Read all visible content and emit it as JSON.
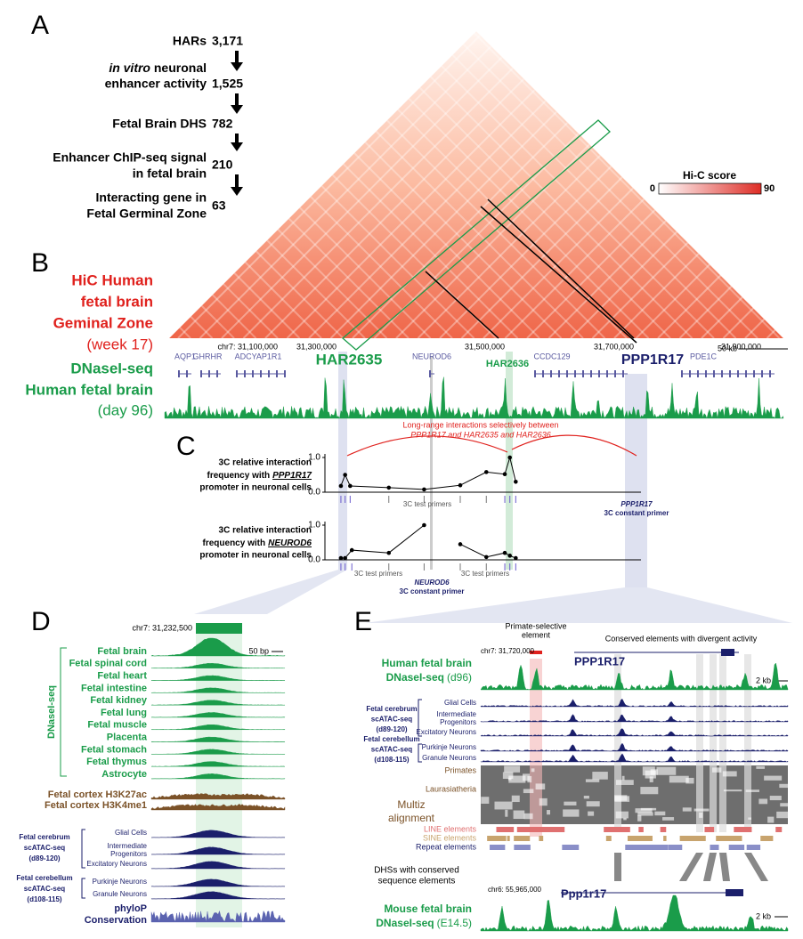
{
  "panel_a": {
    "label": "A",
    "steps": [
      {
        "lines": [
          "HARs"
        ],
        "count": "3,171"
      },
      {
        "italic": "in vitro",
        "lines": [
          " neuronal",
          "enhancer activity"
        ],
        "count": "1,525"
      },
      {
        "lines": [
          "Fetal Brain DHS"
        ],
        "count": "782"
      },
      {
        "lines": [
          "Enhancer ChIP-seq signal",
          "in fetal brain"
        ],
        "count": "210"
      },
      {
        "lines": [
          "Interacting gene in",
          "Fetal Germinal Zone"
        ],
        "count": "63"
      }
    ]
  },
  "panel_b": {
    "label": "B",
    "hic_title": [
      "HiC Human",
      "fetal brain",
      "Geminal Zone",
      "(week 17)"
    ],
    "hic_legend": {
      "title": "Hi-C score",
      "min": 0,
      "max": 90
    },
    "coordinates": [
      "chr7: 31,100,000",
      "31,300,000",
      "31,500,000",
      "31,700,000",
      "31,900,000"
    ],
    "scale": "50 kb",
    "genes": [
      "AQP1",
      "GHRHR",
      "ADCYAP1R1",
      "NEUROD6",
      "CCDC129",
      "PDE1C"
    ],
    "highlights": [
      "HAR2635",
      "HAR2636",
      "PPP1R17"
    ],
    "dnase_title": [
      "DNaseI-seq",
      "Human fetal brain",
      "(day 96)"
    ]
  },
  "panel_c": {
    "label": "C",
    "annotation": [
      "Long-range interactions selectively between",
      "PPP1R17 and HAR2635 and HAR2636"
    ],
    "plots": [
      {
        "ylabel_lines": [
          "3C relative interaction",
          "frequency with",
          "promoter in neuronal cells"
        ],
        "gene": "PPP1R17",
        "x": [
          31.305,
          31.31,
          31.316,
          31.362,
          31.404,
          31.447,
          31.478,
          31.5,
          31.506,
          31.513
        ],
        "values": [
          0.18,
          0.5,
          0.18,
          0.13,
          0.08,
          0.2,
          0.58,
          0.52,
          1.0,
          0.3
        ],
        "xlim": [
          31.286,
          31.662
        ],
        "ylim": [
          0,
          1
        ],
        "yticks": [
          {
            "value": 0,
            "label": "0.0"
          },
          {
            "value": 1,
            "label": "1.0"
          }
        ],
        "test_primers": [
          "3C test primers"
        ],
        "constant_primer": [
          "PPP1R17",
          "3C constant primer"
        ]
      },
      {
        "ylabel_lines": [
          "3C relative interaction",
          "frequency with",
          "promoter in neuronal cells"
        ],
        "gene": "NEUROD6",
        "x": [
          31.305,
          31.31,
          31.318,
          31.362,
          31.404,
          null,
          31.447,
          31.478,
          31.5,
          31.506,
          31.513
        ],
        "values": [
          0.05,
          0.05,
          0.28,
          0.2,
          1.0,
          null,
          0.45,
          0.08,
          0.2,
          0.12,
          0.05
        ],
        "xlim": [
          31.286,
          31.662
        ],
        "ylim": [
          0,
          1
        ],
        "yticks": [
          {
            "value": 0,
            "label": "0.0"
          },
          {
            "value": 1,
            "label": "1.0"
          }
        ],
        "test_primers": [
          "3C test primers",
          "3C test primers"
        ],
        "constant_primer": [
          "NEUROD6",
          "3C constant primer"
        ]
      }
    ]
  },
  "panel_d": {
    "label": "D",
    "coordinate": "chr7: 31,232,500",
    "scale": "50 bp",
    "group": "DNaseI-seq",
    "dnase_tracks": [
      "Fetal brain",
      "Fetal spinal cord",
      "Fetal heart",
      "Fetal intestine",
      "Fetal kidney",
      "Fetal lung",
      "Fetal muscle",
      "Placenta",
      "Fetal stomach",
      "Fetal thymus",
      "Astrocyte"
    ],
    "histone_tracks": [
      "Fetal cortex H3K27ac",
      "Fetal cortex H3K4me1"
    ],
    "cerebrum": {
      "label": [
        "Fetal cerebrum",
        "scATAC-seq",
        "(d89-120)"
      ],
      "cells": [
        "Glial Cells",
        "Intermediate",
        "Progenitors",
        "Excitatory Neurons"
      ]
    },
    "cerebellum": {
      "label": [
        "Fetal cerebellum",
        "scATAC-seq",
        "(d108-115)"
      ],
      "cells": [
        "Purkinje Neurons",
        "Granule Neurons"
      ]
    },
    "conservation": [
      "phyloP",
      "Conservation"
    ]
  },
  "panel_e": {
    "label": "E",
    "primate_label": [
      "Primate-selective",
      "element"
    ],
    "conserved_label": "Conserved elements with divergent activity",
    "human_coordinate": "chr7: 31,720,000",
    "human_gene": "PPP1R17",
    "human_title": [
      "Human fetal brain",
      "DNaseI-seq",
      "(d96)"
    ],
    "scale": "2 kb",
    "cerebrum": {
      "label": [
        "Fetal cerebrum",
        "scATAC-seq",
        "(d89-120)"
      ],
      "cells": [
        "Glial Cells",
        "Intermediate",
        "Progenitors",
        "Excitatory Neurons"
      ]
    },
    "cerebellum": {
      "label": [
        "Fetal cerebellum",
        "scATAC-seq",
        "(d108-115)"
      ],
      "cells": [
        "Purkinje Neurons",
        "Granule Neurons"
      ]
    },
    "alignment": {
      "clades": [
        "Primates",
        "Laurasiatheria"
      ],
      "title": [
        "Multiz",
        "alignment"
      ]
    },
    "repeats": [
      "LINE elements",
      "SINE elements",
      "Repeat elements"
    ],
    "dhs_label": [
      "DHSs with conserved",
      "sequence elements"
    ],
    "mouse_coordinate": "chr6: 55,965,000",
    "mouse_gene": "Ppp1r17",
    "mouse_title": [
      "Mouse fetal brain",
      "DNaseI-seq",
      "(E14.5)"
    ],
    "mouse_scale": "2 kb"
  }
}
